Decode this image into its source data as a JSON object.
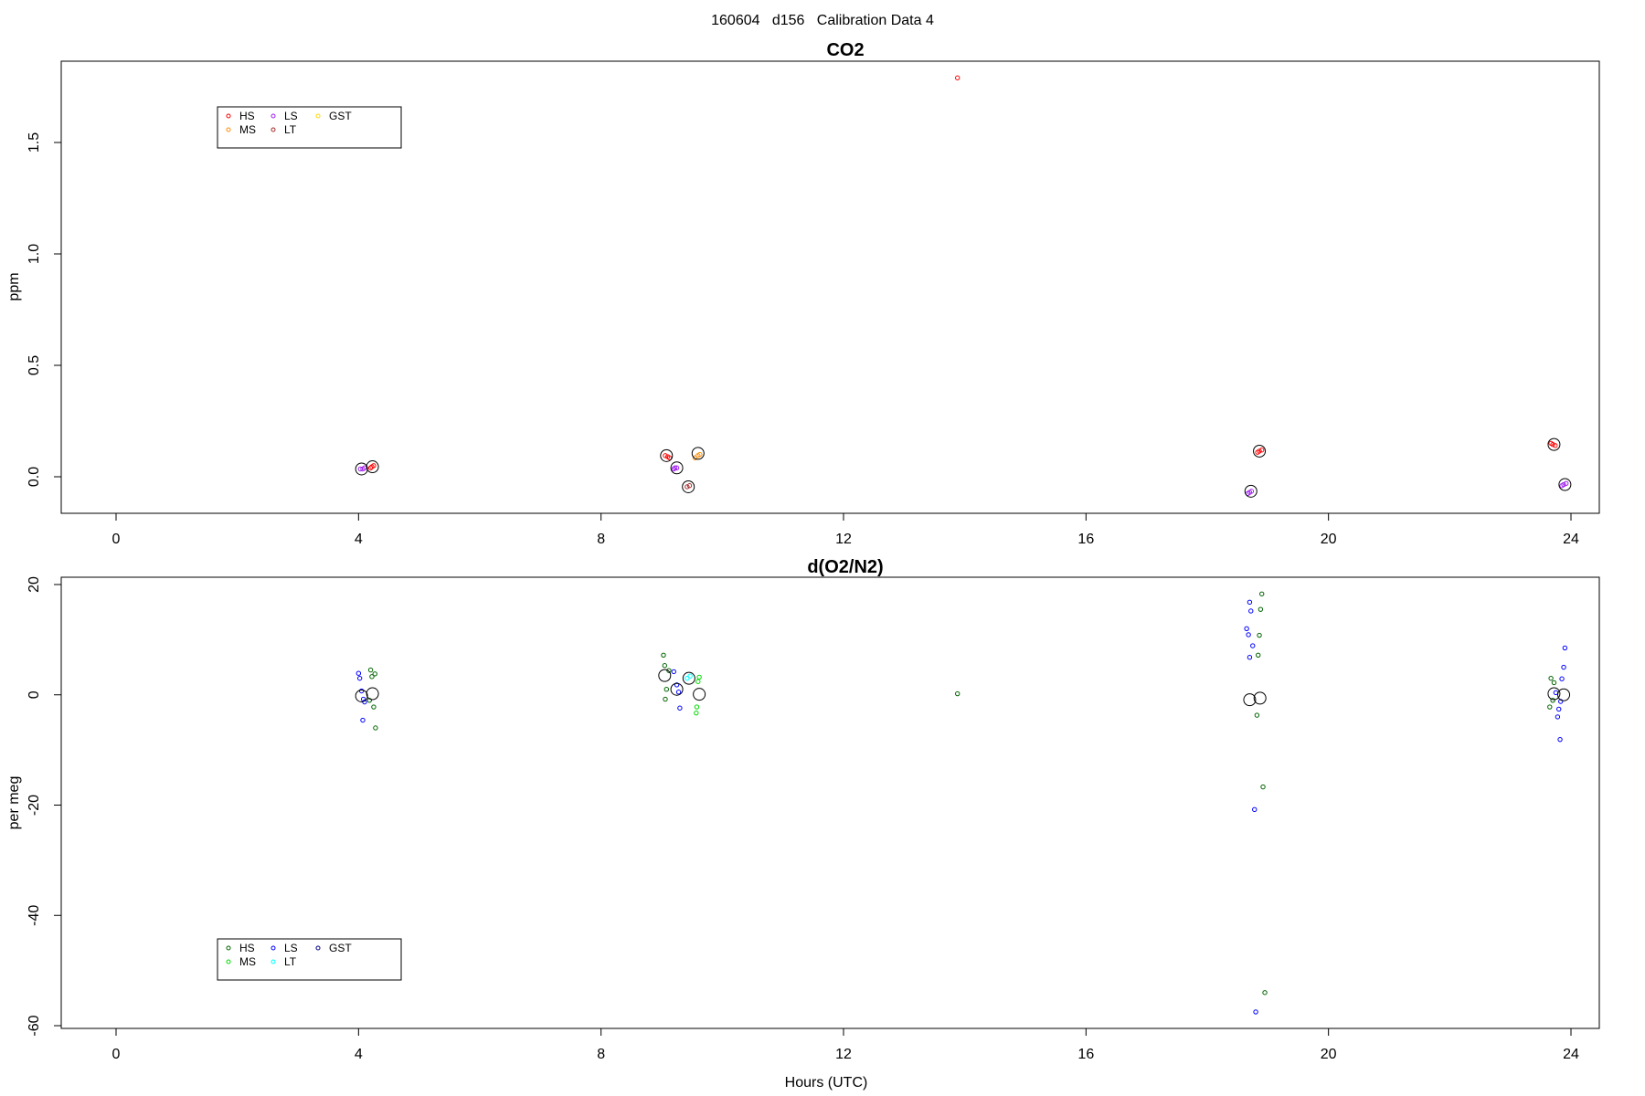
{
  "page_title": "160604   d156   Calibration Data 4",
  "chart_data": [
    {
      "type": "scatter",
      "title": "CO2",
      "xlabel": "",
      "ylabel": "ppm",
      "xlim": [
        0,
        24
      ],
      "ylim": [
        -0.1,
        1.8
      ],
      "x_ticks": [
        0,
        4,
        8,
        12,
        16,
        20,
        24
      ],
      "y_ticks": [
        0.0,
        0.5,
        1.0,
        1.5
      ],
      "y_tick_labels": [
        "0.0",
        "0.5",
        "1.0",
        "1.5"
      ],
      "grid": false,
      "legend": {
        "placement": "top-left",
        "entries": [
          {
            "name": "HS",
            "color": "#ff0000"
          },
          {
            "name": "MS",
            "color": "#ff8c00"
          },
          {
            "name": "LS",
            "color": "#a020f0"
          },
          {
            "name": "LT",
            "color": "#a52a2a"
          },
          {
            "name": "GST",
            "color": "#ffd700"
          }
        ]
      },
      "series": [
        {
          "name": "HS",
          "color": "#ff0000",
          "points": [
            [
              4.22,
              0.045
            ],
            [
              4.25,
              0.05
            ],
            [
              4.2,
              0.04
            ],
            [
              9.06,
              0.095
            ],
            [
              9.1,
              0.09
            ],
            [
              9.13,
              0.085
            ],
            [
              13.88,
              1.79
            ],
            [
              18.86,
              0.115
            ],
            [
              18.9,
              0.12
            ],
            [
              18.83,
              0.11
            ],
            [
              23.7,
              0.145
            ],
            [
              23.74,
              0.14
            ],
            [
              23.67,
              0.15
            ]
          ]
        },
        {
          "name": "MS",
          "color": "#ff8c00",
          "points": [
            [
              9.55,
              0.085
            ],
            [
              9.6,
              0.095
            ],
            [
              9.63,
              0.1
            ]
          ]
        },
        {
          "name": "LS",
          "color": "#a020f0",
          "points": [
            [
              4.03,
              0.035
            ],
            [
              4.07,
              0.035
            ],
            [
              4.1,
              0.04
            ],
            [
              9.22,
              0.04
            ],
            [
              9.25,
              0.04
            ],
            [
              9.2,
              0.035
            ],
            [
              18.7,
              -0.07
            ],
            [
              18.73,
              -0.065
            ],
            [
              18.67,
              -0.075
            ],
            [
              23.88,
              -0.035
            ],
            [
              23.92,
              -0.03
            ],
            [
              23.85,
              -0.04
            ]
          ]
        },
        {
          "name": "LT",
          "color": "#a52a2a",
          "points": [
            [
              9.42,
              -0.045
            ],
            [
              9.46,
              -0.04
            ]
          ]
        }
      ],
      "means": {
        "color": "#000000",
        "points": [
          [
            4.05,
            0.035
          ],
          [
            4.23,
            0.045
          ],
          [
            9.08,
            0.095
          ],
          [
            9.25,
            0.04
          ],
          [
            9.44,
            -0.045
          ],
          [
            9.6,
            0.105
          ],
          [
            18.72,
            -0.065
          ],
          [
            18.86,
            0.115
          ],
          [
            23.72,
            0.145
          ],
          [
            23.9,
            -0.035
          ]
        ]
      }
    },
    {
      "type": "scatter",
      "title": "d(O2/N2)",
      "xlabel": "Hours (UTC)",
      "ylabel": "per meg",
      "xlim": [
        0,
        24
      ],
      "ylim": [
        -60,
        20
      ],
      "x_ticks": [
        0,
        4,
        8,
        12,
        16,
        20,
        24
      ],
      "y_ticks": [
        -60,
        -40,
        -20,
        0,
        20
      ],
      "y_tick_labels": [
        "-60",
        "-40",
        "-20",
        "0",
        "20"
      ],
      "grid": false,
      "legend": {
        "placement": "bottom-left",
        "entries": [
          {
            "name": "HS",
            "color": "#006400"
          },
          {
            "name": "MS",
            "color": "#00dd00"
          },
          {
            "name": "LS",
            "color": "#0000ff"
          },
          {
            "name": "LT",
            "color": "#00ffff"
          },
          {
            "name": "GST",
            "color": "#00008b"
          }
        ]
      },
      "series": [
        {
          "name": "HS",
          "color": "#006400",
          "points": [
            [
              4.2,
              4.5
            ],
            [
              4.27,
              3.8
            ],
            [
              4.22,
              3.3
            ],
            [
              4.25,
              -2.2
            ],
            [
              4.28,
              -6.0
            ],
            [
              4.18,
              -1.0
            ],
            [
              9.03,
              7.2
            ],
            [
              9.05,
              5.3
            ],
            [
              9.08,
              1.0
            ],
            [
              9.06,
              -0.8
            ],
            [
              9.12,
              4.4
            ],
            [
              13.88,
              0.2
            ],
            [
              18.9,
              18.3
            ],
            [
              18.88,
              15.5
            ],
            [
              18.86,
              10.8
            ],
            [
              18.84,
              7.2
            ],
            [
              18.82,
              -3.7
            ],
            [
              18.92,
              -16.7
            ],
            [
              18.95,
              -54.0
            ],
            [
              23.67,
              3.0
            ],
            [
              23.72,
              2.2
            ],
            [
              23.65,
              -2.2
            ],
            [
              23.7,
              -1.0
            ]
          ]
        },
        {
          "name": "MS",
          "color": "#00dd00",
          "points": [
            [
              9.62,
              3.2
            ],
            [
              9.6,
              2.4
            ],
            [
              9.58,
              -2.2
            ],
            [
              9.57,
              -3.3
            ]
          ]
        },
        {
          "name": "LS",
          "color": "#0000ff",
          "points": [
            [
              4.0,
              3.9
            ],
            [
              4.02,
              3.0
            ],
            [
              4.05,
              0.7
            ],
            [
              4.08,
              -0.8
            ],
            [
              4.1,
              -1.3
            ],
            [
              4.07,
              -4.6
            ],
            [
              9.2,
              4.2
            ],
            [
              9.25,
              1.8
            ],
            [
              9.28,
              0.5
            ],
            [
              9.3,
              -2.4
            ],
            [
              18.65,
              12.0
            ],
            [
              18.68,
              10.9
            ],
            [
              18.7,
              16.8
            ],
            [
              18.72,
              15.2
            ],
            [
              18.75,
              8.9
            ],
            [
              18.7,
              6.8
            ],
            [
              18.78,
              -20.8
            ],
            [
              18.8,
              -57.5
            ],
            [
              23.9,
              8.5
            ],
            [
              23.88,
              5.0
            ],
            [
              23.85,
              2.9
            ],
            [
              23.83,
              -1.2
            ],
            [
              23.8,
              -2.6
            ],
            [
              23.78,
              -4.0
            ],
            [
              23.82,
              -8.1
            ],
            [
              23.75,
              0.4
            ]
          ]
        },
        {
          "name": "LT",
          "color": "#00ffff",
          "points": [
            [
              9.42,
              3.0
            ],
            [
              9.47,
              3.4
            ]
          ]
        }
      ],
      "means": {
        "color": "#000000",
        "points": [
          [
            4.05,
            -0.2
          ],
          [
            4.23,
            0.2
          ],
          [
            9.05,
            3.5
          ],
          [
            9.25,
            1.0
          ],
          [
            9.45,
            3.0
          ],
          [
            9.62,
            0.1
          ],
          [
            18.7,
            -0.9
          ],
          [
            18.87,
            -0.6
          ],
          [
            23.72,
            0.2
          ],
          [
            23.88,
            0.0
          ]
        ]
      }
    }
  ]
}
